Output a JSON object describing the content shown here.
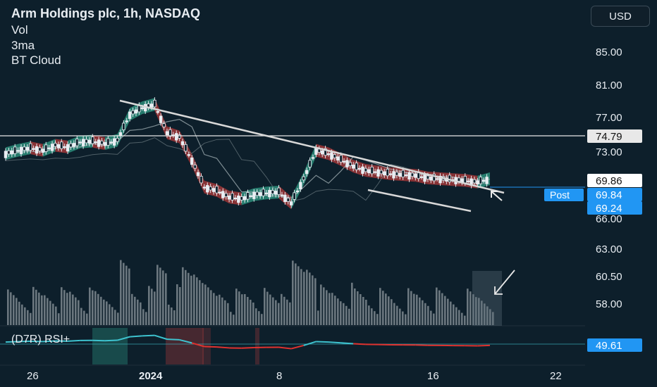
{
  "header": {
    "title": "Arm Holdings plc, 1h, NASDAQ",
    "indicators": [
      "Vol",
      "3ma",
      "BT Cloud"
    ],
    "currency_button": "USD"
  },
  "price_axis": {
    "ticks": [
      "85.00",
      "81.00",
      "77.00",
      "73.00",
      "66.00",
      "63.00",
      "60.50",
      "58.00"
    ]
  },
  "price_labels": {
    "resistance": "74.79",
    "last": "69.86",
    "post_tag": "Post",
    "post_price": "69.84",
    "lower": "69.24",
    "rsi_value": "49.61"
  },
  "rsi_panel": {
    "label": "(D7R) RSI+"
  },
  "time_axis": {
    "labels": [
      "26",
      "2024",
      "8",
      "16",
      "22"
    ]
  },
  "colors": {
    "background": "#0d1f2b",
    "bull": "#2f9c86",
    "bear": "#b23a3a",
    "rsi_bull": "#3ec3cf",
    "rsi_bear": "#e0322f",
    "label_blue": "#2196f3",
    "trendline": "#d8d8d8"
  },
  "chart_data": {
    "type": "line",
    "title": "Arm Holdings plc, 1h, NASDAQ",
    "x_labels": [
      "26",
      "2024",
      "8",
      "16",
      "22"
    ],
    "series": [
      {
        "name": "3ma",
        "values": [
          72.8,
          73.2,
          73.5,
          73.2,
          73.8,
          73.6,
          74.2,
          74.3,
          74.0,
          74.4,
          77.5,
          78.3,
          78.7,
          75.3,
          74.8,
          72.0,
          68.8,
          68.4,
          67.6,
          67.4,
          67.9,
          68.1,
          68.2,
          66.9,
          69.8,
          73.2,
          72.8,
          72.1,
          71.3,
          70.8,
          70.6,
          70.4,
          70.3,
          70.2,
          69.9,
          69.8,
          69.7,
          69.6,
          69.4,
          69.8
        ]
      }
    ],
    "key_levels": {
      "resistance": 74.79,
      "last": 69.86,
      "post": 69.84,
      "lower": 69.24
    },
    "volume_axis_ticks": [
      63.0,
      60.5,
      58.0
    ],
    "rsi_last": 49.61
  }
}
